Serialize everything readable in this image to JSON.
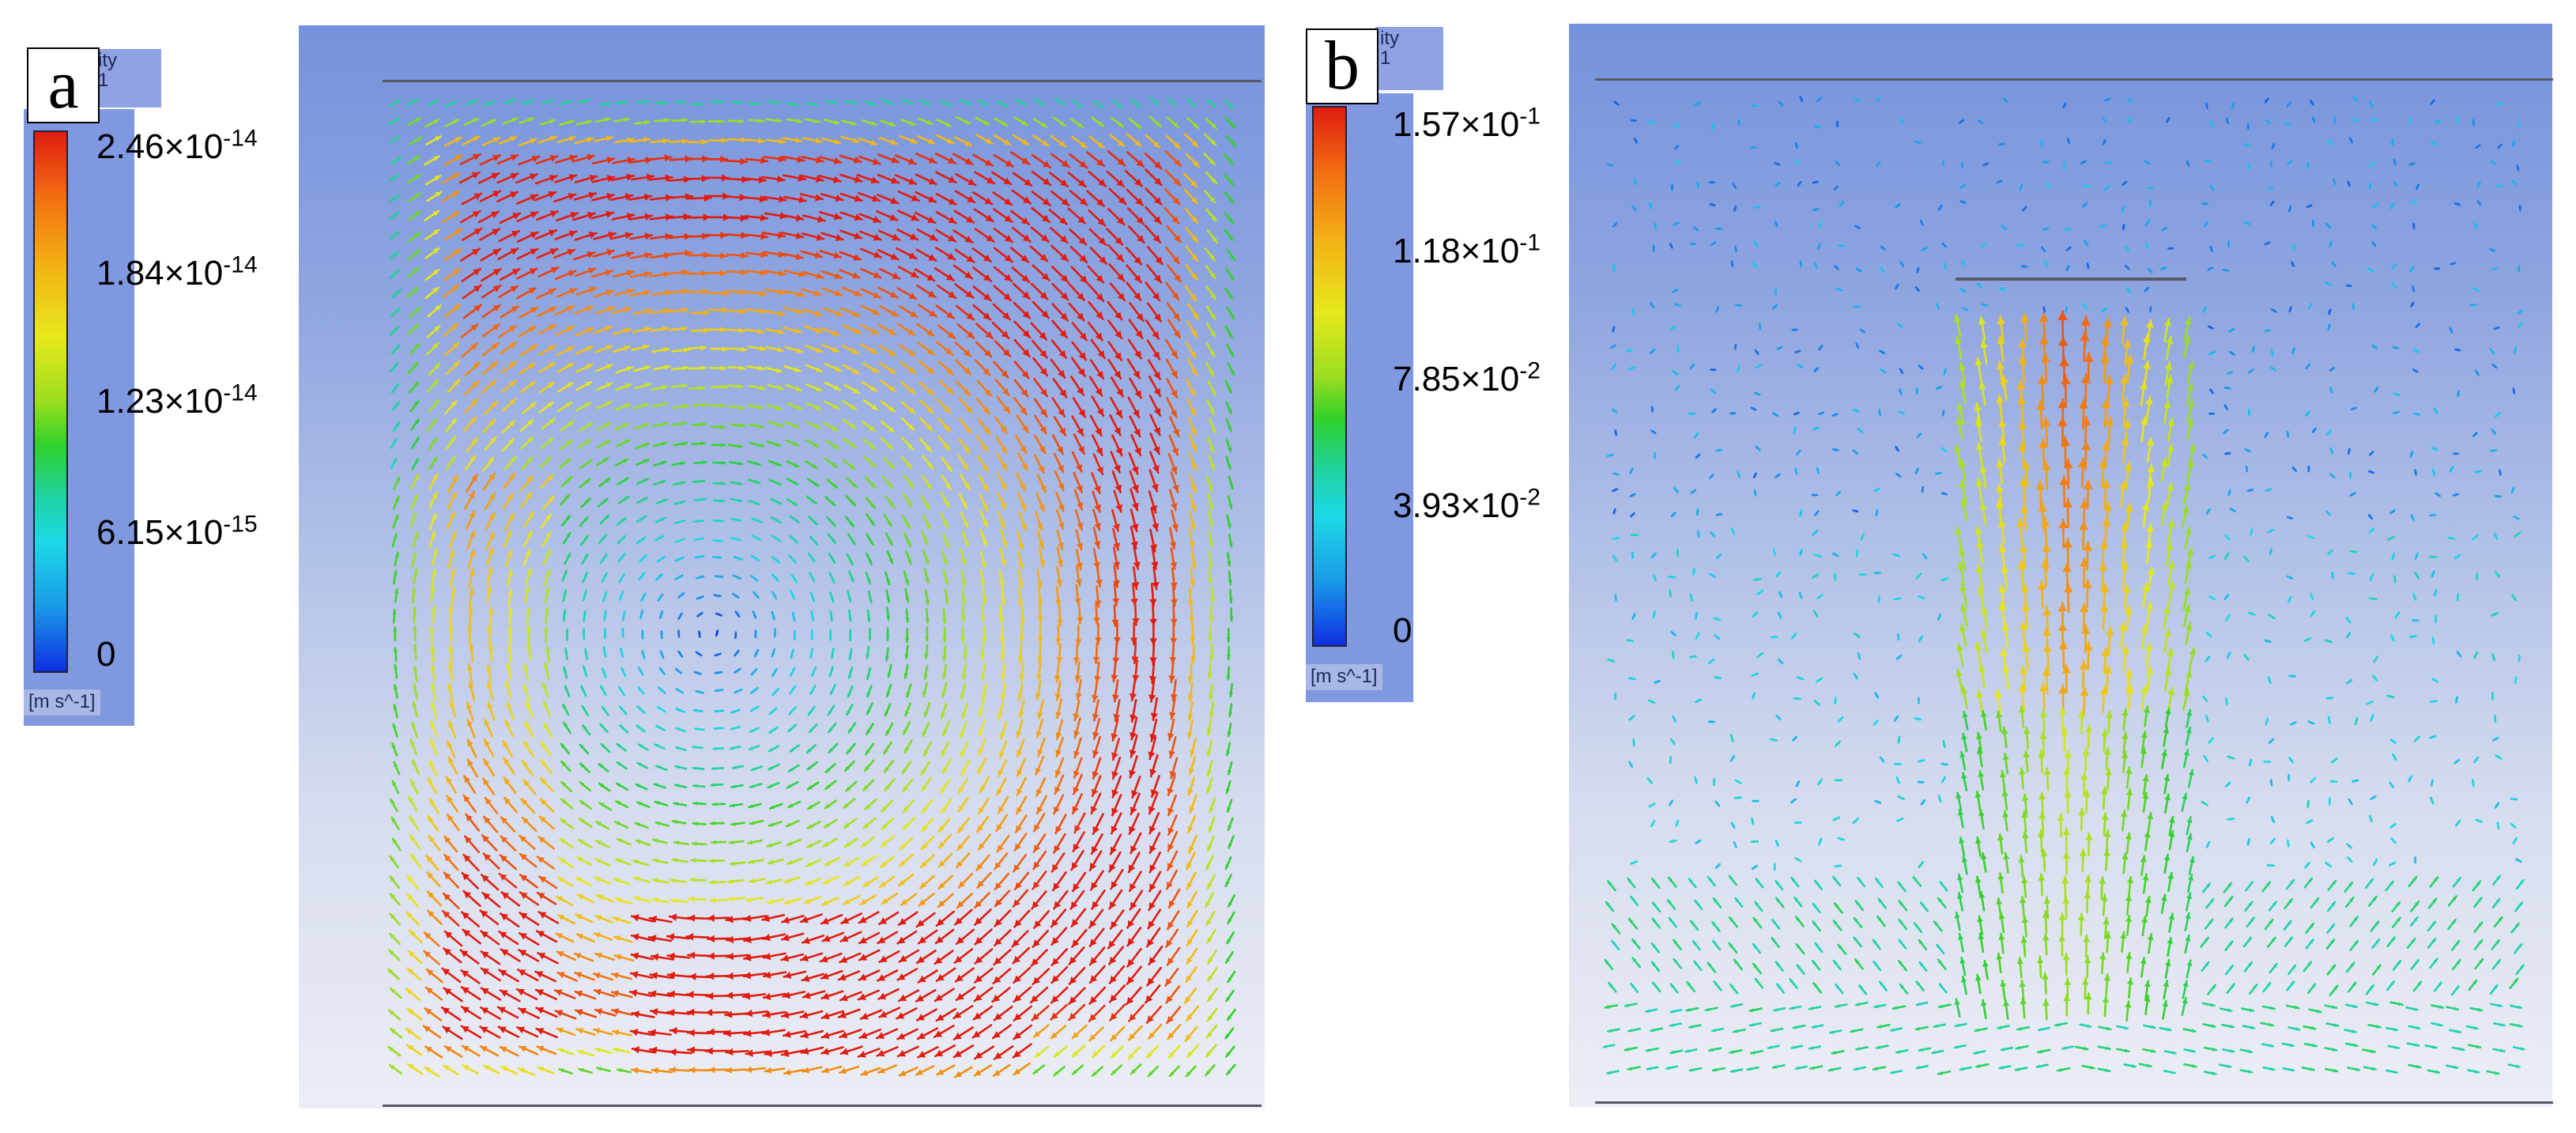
{
  "panels": [
    {
      "tag": "a",
      "variable_lines": [
        "ity",
        "1"
      ],
      "legend": {
        "ticks": [
          "2.46×10-14",
          "1.84×10-14",
          "1.23×10-14",
          "6.15×10-15",
          "0"
        ],
        "unit": "[m s^-1]"
      },
      "flow": "single large clockwise vortex, fastest in lower-left and along the bottom wall"
    },
    {
      "tag": "b",
      "variable_lines": [
        "ity",
        "1"
      ],
      "legend": {
        "ticks": [
          "1.57×10-1",
          "1.18×10-1",
          "7.85×10-2",
          "3.93×10-2",
          "0"
        ],
        "unit": "[m s^-1]"
      },
      "flow": "central upward jet below a suspended plate with two recirculating cells near the bottom"
    }
  ],
  "colormap": [
    "#0e2fe3",
    "#1b9ae8",
    "#1cd9e6",
    "#1ed2a6",
    "#2fd129",
    "#9bde1f",
    "#e7e81c",
    "#f3b315",
    "#f26d12",
    "#e01c10"
  ]
}
